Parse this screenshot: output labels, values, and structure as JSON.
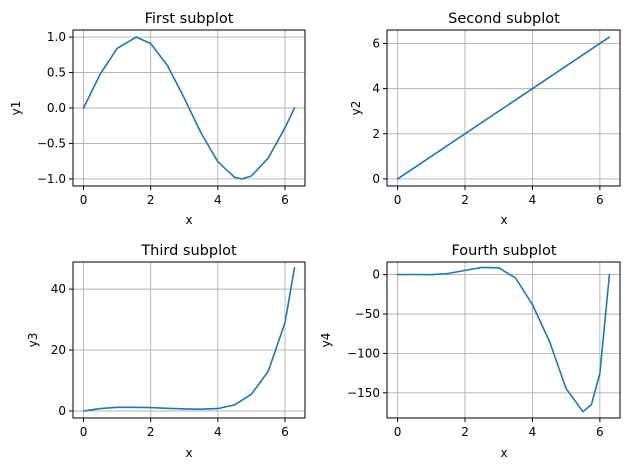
{
  "figure": {
    "background": "#ffffff",
    "line_color": "#1f77b4",
    "grid_color": "#b0b0b0"
  },
  "chart_data": [
    {
      "type": "line",
      "title": "First subplot",
      "xlabel": "x",
      "ylabel": "y1",
      "function": "sin(x)",
      "xlim": [
        -0.314,
        6.597
      ],
      "ylim": [
        -1.1,
        1.1
      ],
      "xticks": [
        0,
        2,
        4,
        6
      ],
      "xtick_labels": [
        "0",
        "2",
        "4",
        "6"
      ],
      "yticks": [
        -1.0,
        -0.5,
        0.0,
        0.5,
        1.0
      ],
      "ytick_labels": [
        "−1.0",
        "−0.5",
        "0.0",
        "0.5",
        "1.0"
      ],
      "grid": true,
      "x": [
        0,
        0.5,
        1.0,
        1.571,
        2.0,
        2.5,
        3.0,
        3.142,
        3.5,
        4.0,
        4.5,
        4.712,
        5.0,
        5.5,
        6.0,
        6.283
      ],
      "y": [
        0,
        0.479,
        0.841,
        1.0,
        0.909,
        0.598,
        0.141,
        0,
        -0.351,
        -0.757,
        -0.978,
        -1.0,
        -0.959,
        -0.706,
        -0.279,
        0
      ]
    },
    {
      "type": "line",
      "title": "Second subplot",
      "xlabel": "x",
      "ylabel": "y2",
      "function": "x",
      "xlim": [
        -0.314,
        6.597
      ],
      "ylim": [
        -0.314,
        6.597
      ],
      "xticks": [
        0,
        2,
        4,
        6
      ],
      "xtick_labels": [
        "0",
        "2",
        "4",
        "6"
      ],
      "yticks": [
        0,
        2,
        4,
        6
      ],
      "ytick_labels": [
        "0",
        "2",
        "4",
        "6"
      ],
      "grid": true,
      "x": [
        0,
        6.283
      ],
      "y": [
        0,
        6.283
      ]
    },
    {
      "type": "line",
      "title": "Third subplot",
      "xlabel": "x",
      "ylabel": "y3",
      "function": "sin(x)*exp(x)",
      "xlim": [
        -0.314,
        6.597
      ],
      "ylim": [
        -2.3,
        48.9
      ],
      "xticks": [
        0,
        2,
        4,
        6
      ],
      "xtick_labels": [
        "0",
        "2",
        "4",
        "6"
      ],
      "yticks": [
        0,
        20,
        40
      ],
      "ytick_labels": [
        "0",
        "20",
        "40"
      ],
      "grid": true,
      "x": [
        0,
        0.5,
        1.0,
        1.5,
        2.0,
        2.5,
        3.0,
        3.5,
        4.0,
        4.5,
        5.0,
        5.5,
        6.0,
        6.283
      ],
      "y": [
        0,
        0.8,
        1.2,
        1.2,
        1.1,
        0.9,
        0.7,
        0.6,
        0.8,
        2.0,
        5.5,
        13.0,
        29.0,
        47.0
      ]
    },
    {
      "type": "line",
      "title": "Fourth subplot",
      "xlabel": "x",
      "ylabel": "y4",
      "function": "x^2*(cos(x)-sin(x))",
      "xlim": [
        -0.314,
        6.597
      ],
      "ylim": [
        -182,
        16
      ],
      "xticks": [
        0,
        2,
        4,
        6
      ],
      "xtick_labels": [
        "0",
        "2",
        "4",
        "6"
      ],
      "yticks": [
        0,
        -50,
        -100,
        -150
      ],
      "ytick_labels": [
        "0",
        "−50",
        "−100",
        "−150"
      ],
      "grid": true,
      "x": [
        0,
        0.5,
        1.0,
        1.5,
        2.0,
        2.5,
        3.0,
        3.5,
        4.0,
        4.5,
        5.0,
        5.5,
        5.75,
        6.0,
        6.283
      ],
      "y": [
        0,
        0.1,
        -0.1,
        1.4,
        5.3,
        9.2,
        8.6,
        -4.3,
        -38.0,
        -84.2,
        -145.0,
        -174.0,
        -165.0,
        -125.0,
        0
      ]
    }
  ]
}
